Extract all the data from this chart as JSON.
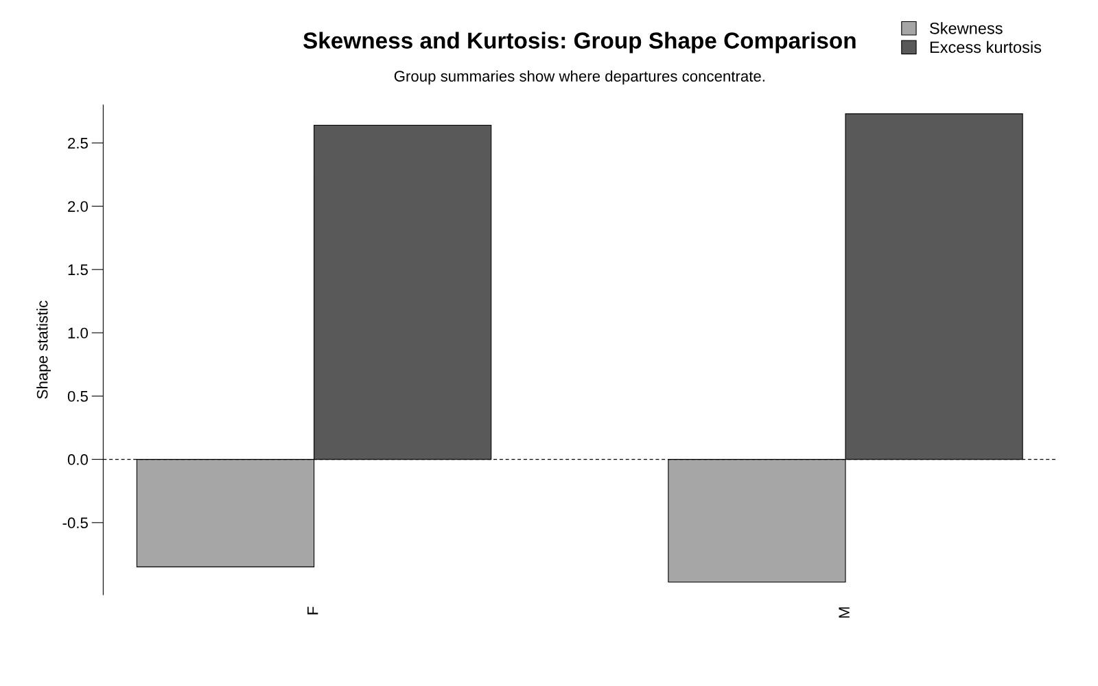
{
  "chart_data": {
    "type": "bar",
    "title": "Skewness and Kurtosis: Group Shape Comparison",
    "subtitle": "Group summaries show where departures concentrate.",
    "ylabel": "Shape statistic",
    "categories": [
      "F",
      "M"
    ],
    "series": [
      {
        "name": "Skewness",
        "color": "#a6a6a6",
        "values": [
          -0.85,
          -0.97
        ]
      },
      {
        "name": "Excess kurtosis",
        "color": "#595959",
        "values": [
          2.64,
          2.73
        ]
      }
    ],
    "ylim": [
      -1.07,
      2.8
    ],
    "yticks": [
      {
        "value": -0.5,
        "label": "-0.5"
      },
      {
        "value": 0,
        "label": "0.0"
      },
      {
        "value": 0.5,
        "label": "0.5"
      },
      {
        "value": 1,
        "label": "1.0"
      },
      {
        "value": 1.5,
        "label": "1.5"
      },
      {
        "value": 2,
        "label": "2.0"
      },
      {
        "value": 2.5,
        "label": "2.5"
      }
    ],
    "ref_lines": [
      {
        "axis": "y",
        "value": 0,
        "label": null,
        "color": "#000000",
        "line_style": "dashed"
      }
    ],
    "grid": false,
    "legend": "top right"
  }
}
